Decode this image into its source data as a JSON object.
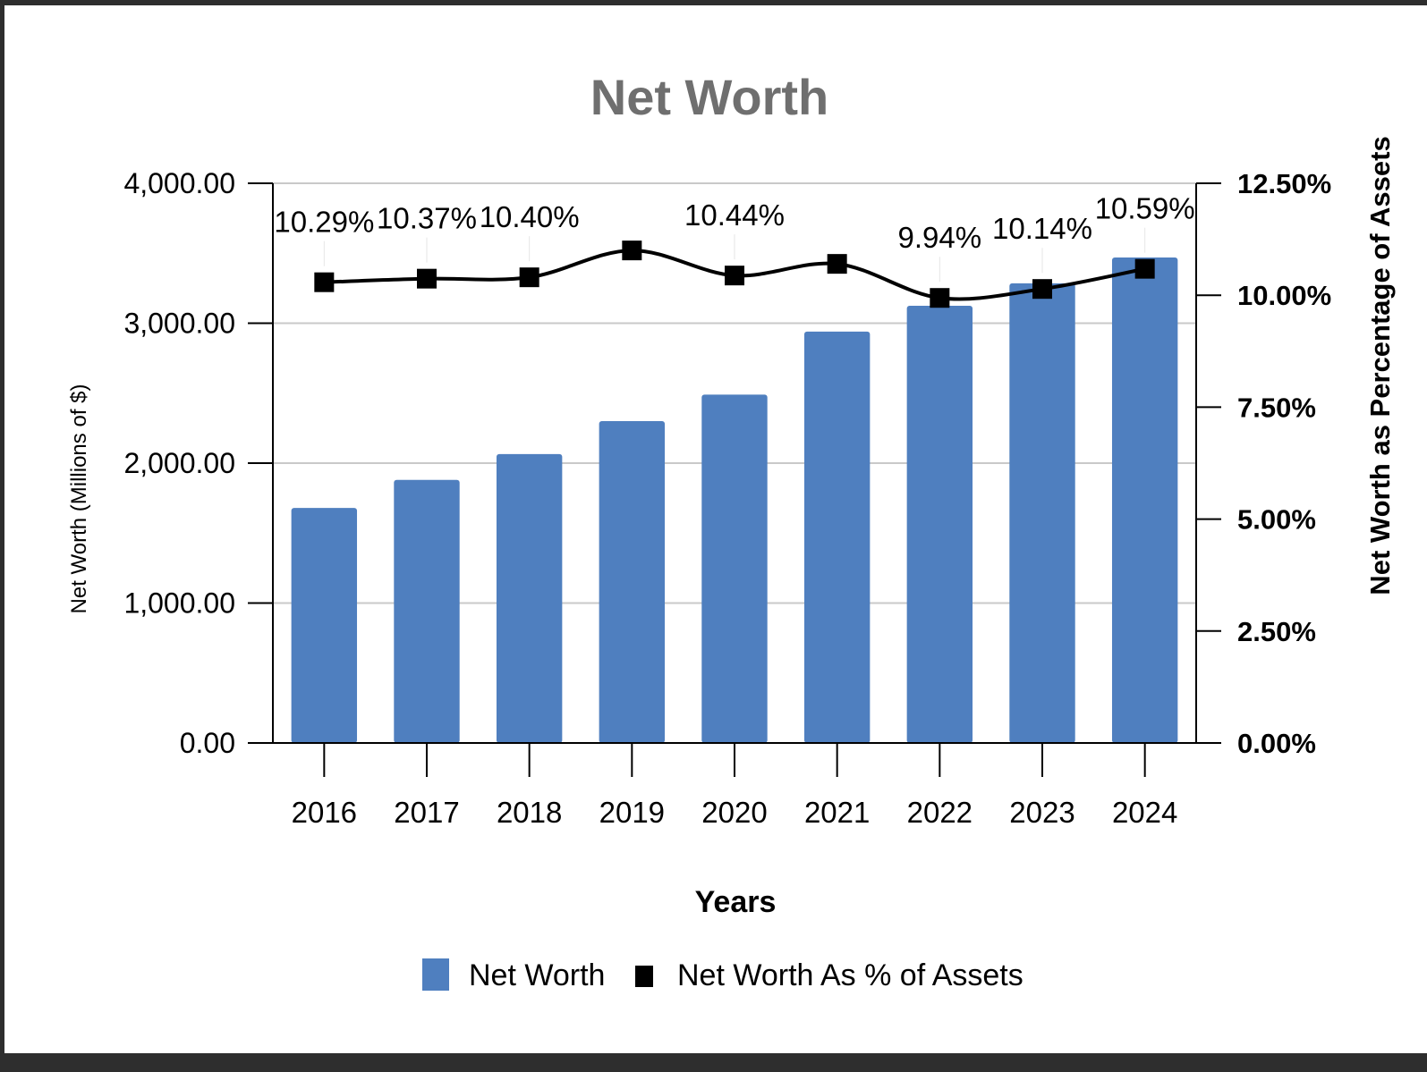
{
  "chart_data": {
    "type": "bar",
    "title": "Net Worth",
    "xlabel": "Years",
    "ylabel": "Net Worth (Millions of $)",
    "y2label": "Net Worth as Percentage of Assets",
    "ylim": [
      0,
      4000
    ],
    "y2lim": [
      0,
      12.5
    ],
    "yticks": [
      "0.00",
      "1,000.00",
      "2,000.00",
      "3,000.00",
      "4,000.00"
    ],
    "y2ticks": [
      "0.00%",
      "2.50%",
      "5.00%",
      "7.50%",
      "10.00%",
      "12.50%"
    ],
    "categories": [
      "2016",
      "2017",
      "2018",
      "2019",
      "2020",
      "2021",
      "2022",
      "2023",
      "2024"
    ],
    "grid": true,
    "legend_position": "bottom-center",
    "series": [
      {
        "name": "Net Worth",
        "type": "bar",
        "axis": "left",
        "color": "#4f7fbf",
        "values": [
          1680,
          1880,
          2065,
          2300,
          2490,
          2940,
          3125,
          3285,
          3470
        ]
      },
      {
        "name": "Net Worth As % of Assets",
        "type": "line",
        "axis": "right",
        "color": "#000000",
        "values": [
          10.29,
          10.37,
          10.4,
          11.0,
          10.44,
          10.7,
          9.94,
          10.14,
          10.59
        ],
        "labels": [
          "10.29%",
          "10.37%",
          "10.40%",
          "",
          "10.44%",
          "",
          "9.94%",
          "10.14%",
          "10.59%"
        ]
      }
    ]
  }
}
